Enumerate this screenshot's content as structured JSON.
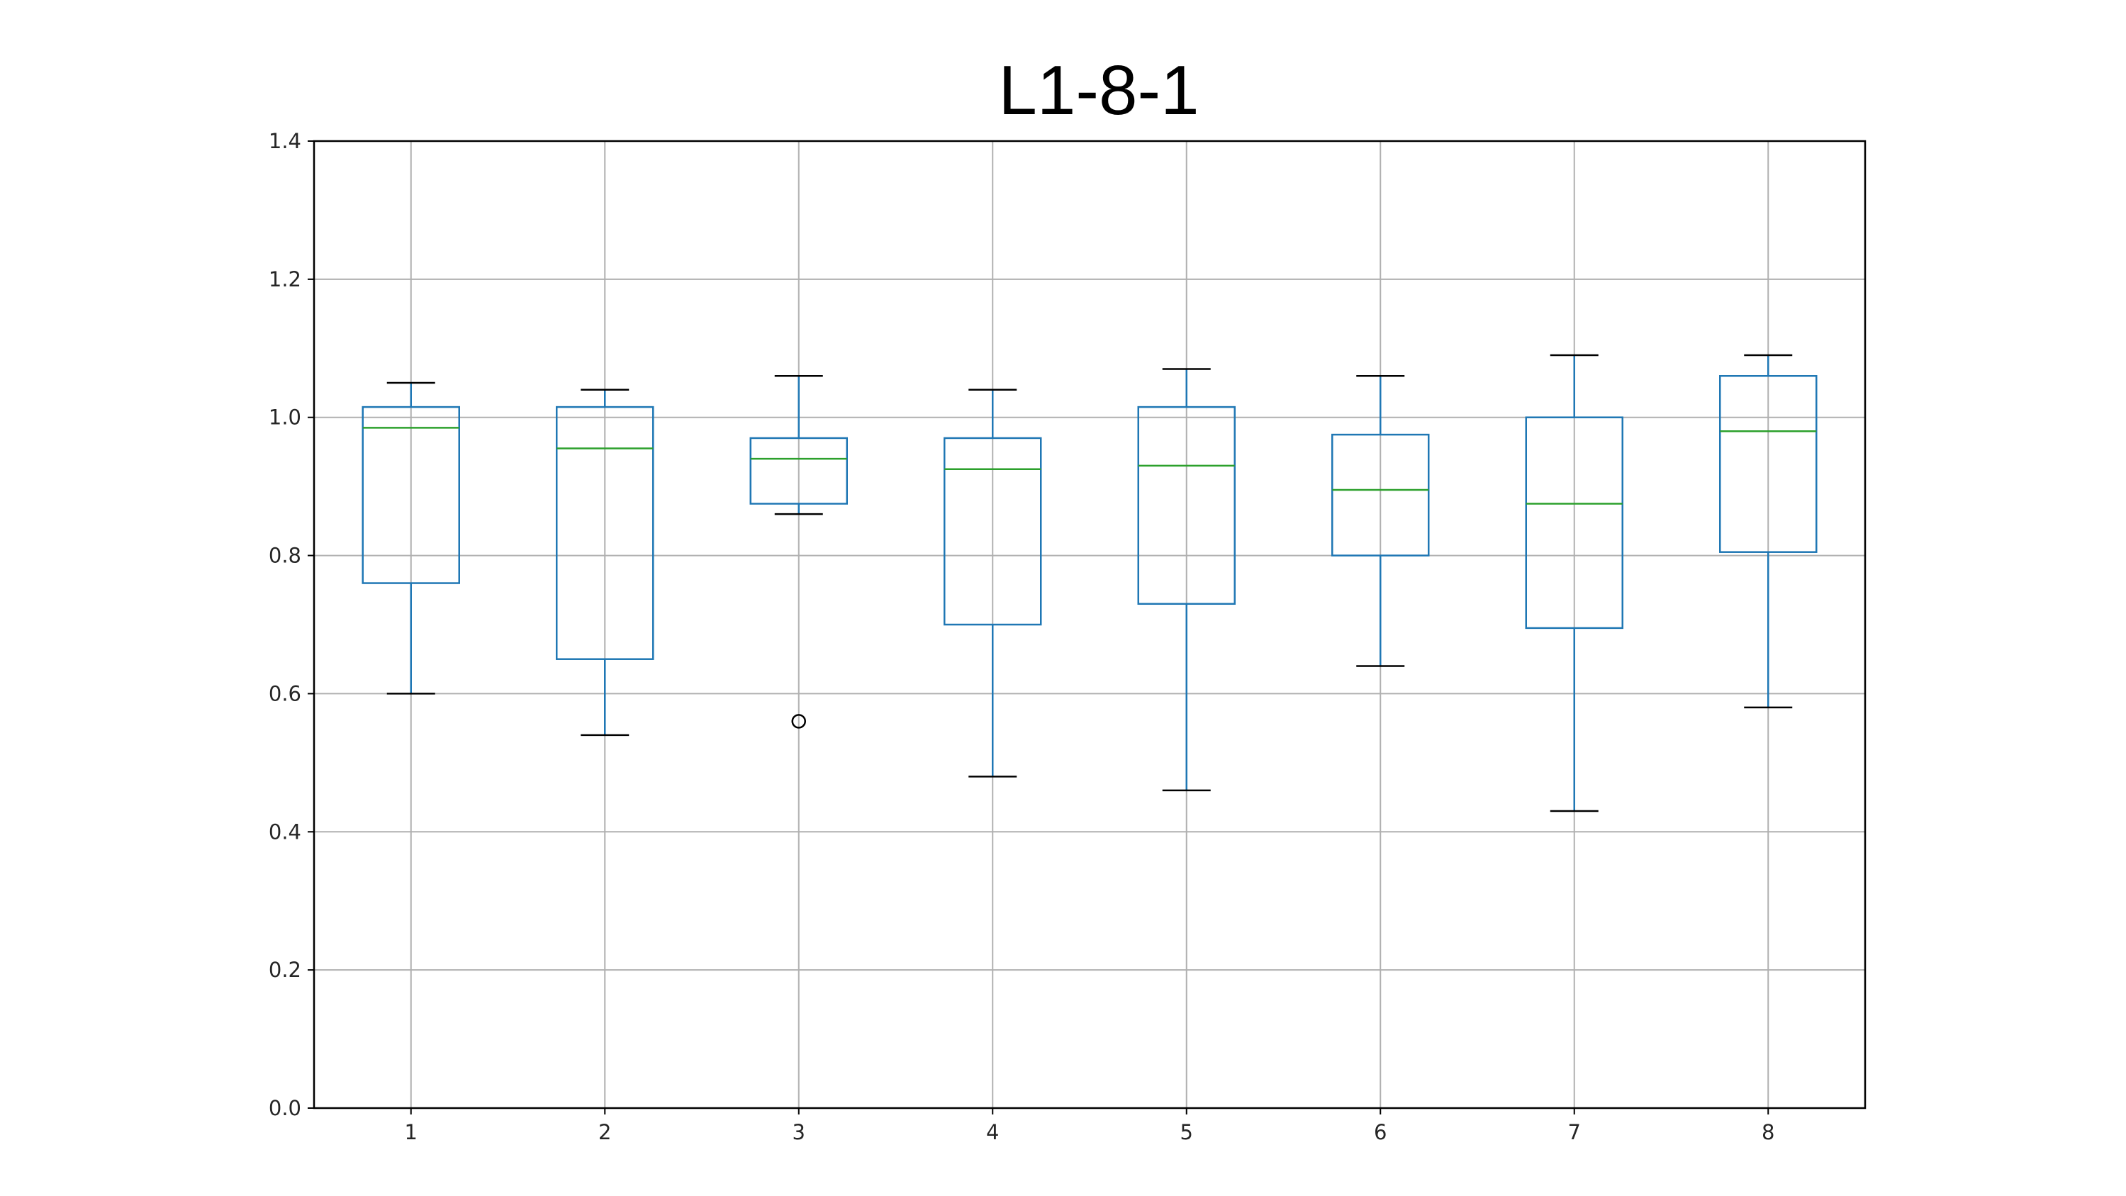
{
  "chart_data": {
    "type": "box",
    "title": "L1-8-1",
    "xlabel": "",
    "ylabel": "",
    "categories": [
      "1",
      "2",
      "3",
      "4",
      "5",
      "6",
      "7",
      "8"
    ],
    "ylim": [
      0.0,
      1.4
    ],
    "yticks": [
      "0.0",
      "0.2",
      "0.4",
      "0.6",
      "0.8",
      "1.0",
      "1.2",
      "1.4"
    ],
    "grid": true,
    "boxes": [
      {
        "whisker_low": 0.6,
        "q1": 0.76,
        "median": 0.985,
        "q3": 1.015,
        "whisker_high": 1.05,
        "outliers": []
      },
      {
        "whisker_low": 0.54,
        "q1": 0.65,
        "median": 0.955,
        "q3": 1.015,
        "whisker_high": 1.04,
        "outliers": []
      },
      {
        "whisker_low": 0.86,
        "q1": 0.875,
        "median": 0.94,
        "q3": 0.97,
        "whisker_high": 1.06,
        "outliers": [
          0.56
        ]
      },
      {
        "whisker_low": 0.48,
        "q1": 0.7,
        "median": 0.925,
        "q3": 0.97,
        "whisker_high": 1.04,
        "outliers": []
      },
      {
        "whisker_low": 0.46,
        "q1": 0.73,
        "median": 0.93,
        "q3": 1.015,
        "whisker_high": 1.07,
        "outliers": []
      },
      {
        "whisker_low": 0.64,
        "q1": 0.8,
        "median": 0.895,
        "q3": 0.975,
        "whisker_high": 1.06,
        "outliers": []
      },
      {
        "whisker_low": 0.43,
        "q1": 0.695,
        "median": 0.875,
        "q3": 1.0,
        "whisker_high": 1.09,
        "outliers": []
      },
      {
        "whisker_low": 0.58,
        "q1": 0.805,
        "median": 0.98,
        "q3": 1.06,
        "whisker_high": 1.09,
        "outliers": []
      }
    ],
    "colors": {
      "box": "#1f77b4",
      "median": "#2ca02c",
      "whisker_cap": "#000000",
      "outlier": "#000000",
      "grid": "#b0b0b0"
    }
  }
}
